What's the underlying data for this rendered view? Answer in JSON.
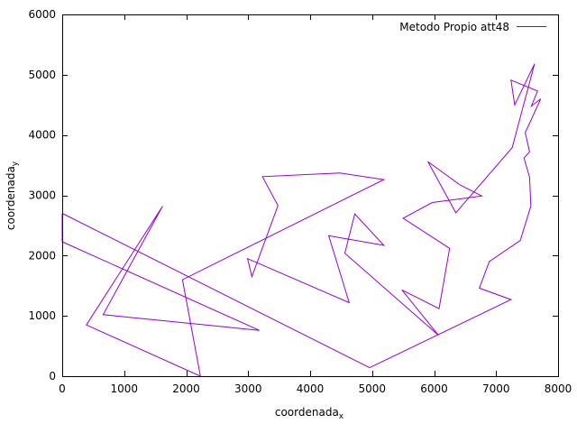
{
  "chart_data": {
    "type": "line",
    "title": "",
    "xlabel": "coordenada",
    "xlabel_sub": "x",
    "ylabel": "coordenada",
    "ylabel_sub": "y",
    "xlim": [
      0,
      8000
    ],
    "ylim": [
      0,
      6000
    ],
    "xticks": [
      0,
      1000,
      2000,
      3000,
      4000,
      5000,
      6000,
      7000,
      8000
    ],
    "yticks": [
      0,
      1000,
      2000,
      3000,
      4000,
      5000,
      6000
    ],
    "grid": false,
    "legend_position": "top-right",
    "series": [
      {
        "name": "Metodo Propio att48",
        "color": "#9400d3",
        "points": [
          [
            0,
            2700
          ],
          [
            0,
            2230
          ],
          [
            3180,
            760
          ],
          [
            660,
            1020
          ],
          [
            1620,
            2820
          ],
          [
            390,
            850
          ],
          [
            2230,
            0
          ],
          [
            1940,
            1600
          ],
          [
            5190,
            3260
          ],
          [
            4480,
            3370
          ],
          [
            3230,
            3310
          ],
          [
            3480,
            2830
          ],
          [
            3060,
            1650
          ],
          [
            2990,
            1950
          ],
          [
            4630,
            1220
          ],
          [
            4300,
            2330
          ],
          [
            5190,
            2170
          ],
          [
            4720,
            2690
          ],
          [
            4560,
            2040
          ],
          [
            6070,
            680
          ],
          [
            5480,
            1430
          ],
          [
            6080,
            1120
          ],
          [
            6250,
            2120
          ],
          [
            5500,
            2620
          ],
          [
            5970,
            2880
          ],
          [
            6770,
            2990
          ],
          [
            6420,
            3170
          ],
          [
            5900,
            3560
          ],
          [
            6350,
            2710
          ],
          [
            7260,
            3790
          ],
          [
            7620,
            5180
          ],
          [
            7300,
            4500
          ],
          [
            7240,
            4910
          ],
          [
            7670,
            4730
          ],
          [
            7570,
            4480
          ],
          [
            7720,
            4600
          ],
          [
            7470,
            4040
          ],
          [
            7540,
            3720
          ],
          [
            7450,
            3620
          ],
          [
            7540,
            3300
          ],
          [
            7560,
            2820
          ],
          [
            7390,
            2250
          ],
          [
            6890,
            1900
          ],
          [
            6730,
            1460
          ],
          [
            7240,
            1270
          ],
          [
            4960,
            140
          ],
          [
            0,
            2700
          ]
        ]
      }
    ]
  }
}
